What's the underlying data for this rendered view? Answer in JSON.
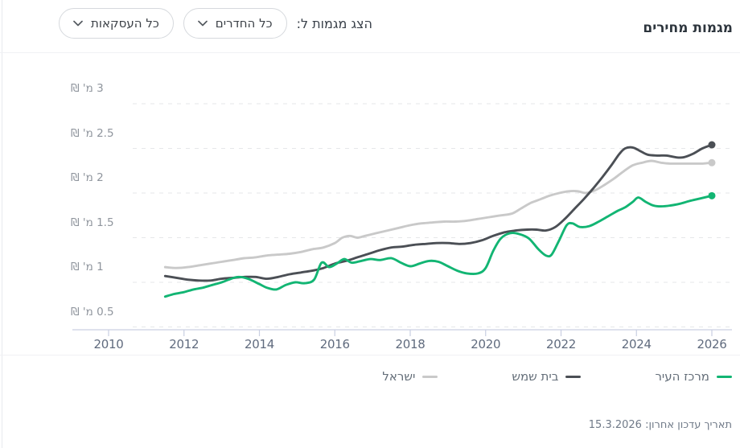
{
  "header": {
    "title": "מגמות מחירים",
    "filter_label": "הצג מגמות ל:",
    "rooms_dropdown_value": "כל החדרים",
    "deals_dropdown_value": "כל העסקאות"
  },
  "footer": {
    "last_update": "תאריך עדכון אחרון: 15.3.2026"
  },
  "colors": {
    "city_center": "#12b573",
    "beit_shemesh": "#4b4f55",
    "israel": "#c9c9c9",
    "axis": "#c9cfe2",
    "gridline": "#e6e7e9"
  },
  "chart_data": {
    "type": "line",
    "title": "מגמות מחירים",
    "unit": "מ' ₪",
    "grid": true,
    "legend_position": "bottom",
    "x_axis": {
      "range": [
        2009.05,
        2026.55
      ],
      "ticks": [
        2010,
        2012,
        2014,
        2016,
        2018,
        2020,
        2022,
        2024,
        2026
      ]
    },
    "y_axis": {
      "range": [
        0.35,
        3.2
      ],
      "ticks": [
        {
          "value": 3,
          "label": "3 מ' ₪"
        },
        {
          "value": 2.5,
          "label": "2.5 מ' ₪"
        },
        {
          "value": 2,
          "label": "2 מ' ₪"
        },
        {
          "value": 1.5,
          "label": "1.5 מ' ₪"
        },
        {
          "value": 1,
          "label": "1 מ' ₪"
        },
        {
          "value": 0.5,
          "label": "0.5 מ' ₪"
        }
      ]
    },
    "series": [
      {
        "name": "מרכז העיר",
        "color": "#12b573",
        "end_dot": true,
        "points": [
          [
            2011.5,
            0.84
          ],
          [
            2011.75,
            0.87
          ],
          [
            2012,
            0.89
          ],
          [
            2012.25,
            0.92
          ],
          [
            2012.5,
            0.94
          ],
          [
            2012.75,
            0.97
          ],
          [
            2013,
            1.0
          ],
          [
            2013.25,
            1.04
          ],
          [
            2013.45,
            1.06
          ],
          [
            2013.7,
            1.04
          ],
          [
            2014,
            0.98
          ],
          [
            2014.2,
            0.94
          ],
          [
            2014.45,
            0.92
          ],
          [
            2014.7,
            0.97
          ],
          [
            2014.95,
            1.0
          ],
          [
            2015.2,
            0.99
          ],
          [
            2015.45,
            1.03
          ],
          [
            2015.65,
            1.22
          ],
          [
            2015.85,
            1.17
          ],
          [
            2016.05,
            1.21
          ],
          [
            2016.25,
            1.26
          ],
          [
            2016.45,
            1.22
          ],
          [
            2016.7,
            1.24
          ],
          [
            2016.95,
            1.26
          ],
          [
            2017.2,
            1.25
          ],
          [
            2017.5,
            1.27
          ],
          [
            2017.75,
            1.22
          ],
          [
            2018,
            1.18
          ],
          [
            2018.25,
            1.21
          ],
          [
            2018.5,
            1.24
          ],
          [
            2018.75,
            1.23
          ],
          [
            2019,
            1.18
          ],
          [
            2019.25,
            1.13
          ],
          [
            2019.5,
            1.1
          ],
          [
            2019.8,
            1.1
          ],
          [
            2020,
            1.16
          ],
          [
            2020.2,
            1.35
          ],
          [
            2020.4,
            1.49
          ],
          [
            2020.65,
            1.55
          ],
          [
            2020.9,
            1.54
          ],
          [
            2021.15,
            1.49
          ],
          [
            2021.4,
            1.37
          ],
          [
            2021.6,
            1.3
          ],
          [
            2021.75,
            1.31
          ],
          [
            2021.95,
            1.47
          ],
          [
            2022.15,
            1.64
          ],
          [
            2022.3,
            1.66
          ],
          [
            2022.5,
            1.62
          ],
          [
            2022.75,
            1.63
          ],
          [
            2023,
            1.68
          ],
          [
            2023.25,
            1.74
          ],
          [
            2023.5,
            1.8
          ],
          [
            2023.7,
            1.84
          ],
          [
            2023.9,
            1.9
          ],
          [
            2024.05,
            1.95
          ],
          [
            2024.25,
            1.9
          ],
          [
            2024.45,
            1.86
          ],
          [
            2024.65,
            1.85
          ],
          [
            2024.9,
            1.86
          ],
          [
            2025.15,
            1.88
          ],
          [
            2025.4,
            1.91
          ],
          [
            2025.7,
            1.94
          ],
          [
            2026,
            1.97
          ]
        ]
      },
      {
        "name": "בית שמש",
        "color": "#4b4f55",
        "end_dot": true,
        "points": [
          [
            2011.5,
            1.07
          ],
          [
            2011.8,
            1.05
          ],
          [
            2012.1,
            1.03
          ],
          [
            2012.4,
            1.02
          ],
          [
            2012.7,
            1.02
          ],
          [
            2013,
            1.04
          ],
          [
            2013.3,
            1.05
          ],
          [
            2013.6,
            1.06
          ],
          [
            2013.9,
            1.06
          ],
          [
            2014.2,
            1.04
          ],
          [
            2014.5,
            1.06
          ],
          [
            2014.8,
            1.09
          ],
          [
            2015.1,
            1.11
          ],
          [
            2015.4,
            1.13
          ],
          [
            2015.7,
            1.16
          ],
          [
            2016,
            1.21
          ],
          [
            2016.3,
            1.24
          ],
          [
            2016.6,
            1.28
          ],
          [
            2016.9,
            1.32
          ],
          [
            2017.2,
            1.36
          ],
          [
            2017.5,
            1.39
          ],
          [
            2017.8,
            1.4
          ],
          [
            2018.1,
            1.42
          ],
          [
            2018.4,
            1.43
          ],
          [
            2018.7,
            1.44
          ],
          [
            2019,
            1.44
          ],
          [
            2019.3,
            1.43
          ],
          [
            2019.6,
            1.44
          ],
          [
            2019.9,
            1.47
          ],
          [
            2020.2,
            1.52
          ],
          [
            2020.5,
            1.56
          ],
          [
            2020.8,
            1.58
          ],
          [
            2021.1,
            1.59
          ],
          [
            2021.35,
            1.59
          ],
          [
            2021.6,
            1.58
          ],
          [
            2021.85,
            1.62
          ],
          [
            2022.1,
            1.71
          ],
          [
            2022.35,
            1.82
          ],
          [
            2022.6,
            1.93
          ],
          [
            2022.85,
            2.05
          ],
          [
            2023.1,
            2.18
          ],
          [
            2023.35,
            2.32
          ],
          [
            2023.55,
            2.44
          ],
          [
            2023.7,
            2.5
          ],
          [
            2023.9,
            2.51
          ],
          [
            2024.1,
            2.47
          ],
          [
            2024.3,
            2.43
          ],
          [
            2024.55,
            2.42
          ],
          [
            2024.8,
            2.42
          ],
          [
            2025.05,
            2.4
          ],
          [
            2025.25,
            2.4
          ],
          [
            2025.5,
            2.44
          ],
          [
            2025.75,
            2.5
          ],
          [
            2026,
            2.54
          ]
        ]
      },
      {
        "name": "ישראל",
        "color": "#c9c9c9",
        "end_dot": true,
        "points": [
          [
            2011.5,
            1.17
          ],
          [
            2011.8,
            1.16
          ],
          [
            2012.1,
            1.17
          ],
          [
            2012.4,
            1.19
          ],
          [
            2012.7,
            1.21
          ],
          [
            2013,
            1.23
          ],
          [
            2013.3,
            1.25
          ],
          [
            2013.6,
            1.27
          ],
          [
            2013.9,
            1.28
          ],
          [
            2014.2,
            1.3
          ],
          [
            2014.5,
            1.31
          ],
          [
            2014.8,
            1.32
          ],
          [
            2015.1,
            1.34
          ],
          [
            2015.4,
            1.37
          ],
          [
            2015.7,
            1.39
          ],
          [
            2016,
            1.44
          ],
          [
            2016.2,
            1.5
          ],
          [
            2016.4,
            1.52
          ],
          [
            2016.6,
            1.5
          ],
          [
            2016.8,
            1.52
          ],
          [
            2017.1,
            1.55
          ],
          [
            2017.4,
            1.58
          ],
          [
            2017.7,
            1.61
          ],
          [
            2018,
            1.64
          ],
          [
            2018.3,
            1.66
          ],
          [
            2018.6,
            1.67
          ],
          [
            2018.9,
            1.68
          ],
          [
            2019.2,
            1.68
          ],
          [
            2019.5,
            1.69
          ],
          [
            2019.8,
            1.71
          ],
          [
            2020.1,
            1.73
          ],
          [
            2020.4,
            1.75
          ],
          [
            2020.7,
            1.77
          ],
          [
            2020.95,
            1.83
          ],
          [
            2021.2,
            1.89
          ],
          [
            2021.45,
            1.93
          ],
          [
            2021.7,
            1.97
          ],
          [
            2021.95,
            2.0
          ],
          [
            2022.2,
            2.02
          ],
          [
            2022.45,
            2.02
          ],
          [
            2022.65,
            2.0
          ],
          [
            2022.9,
            2.03
          ],
          [
            2023.15,
            2.09
          ],
          [
            2023.4,
            2.16
          ],
          [
            2023.65,
            2.24
          ],
          [
            2023.9,
            2.31
          ],
          [
            2024.15,
            2.34
          ],
          [
            2024.4,
            2.36
          ],
          [
            2024.65,
            2.34
          ],
          [
            2024.9,
            2.33
          ],
          [
            2025.2,
            2.33
          ],
          [
            2025.5,
            2.33
          ],
          [
            2025.75,
            2.33
          ],
          [
            2026,
            2.34
          ]
        ]
      }
    ]
  }
}
